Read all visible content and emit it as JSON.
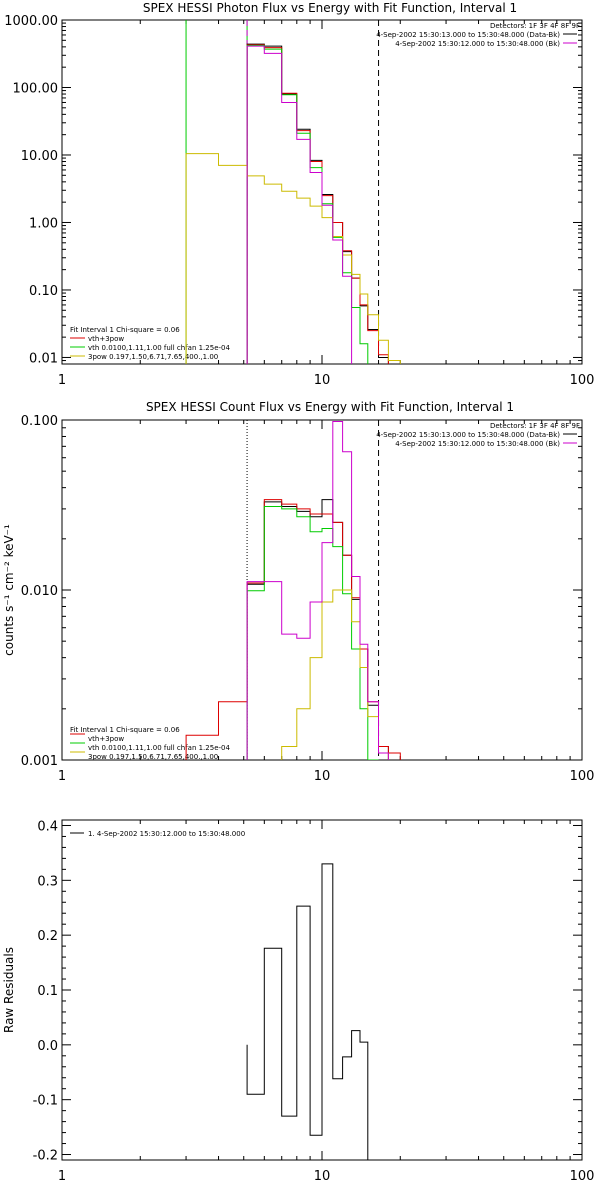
{
  "chart_data": [
    {
      "type": "line",
      "title": "SPEX HESSI Photon Flux vs Energy with Fit Function, Interval 1",
      "ylabel": "",
      "xlabel": "",
      "xscale": "log",
      "yscale": "log",
      "xlim": [
        1,
        100
      ],
      "ylim": [
        0.008,
        1000
      ],
      "xticks": [
        1,
        10,
        100
      ],
      "xtick_labels": [
        "1",
        "10",
        "100"
      ],
      "yticks": [
        0.01,
        0.1,
        1,
        10,
        100,
        1000
      ],
      "ytick_labels": [
        "0.01",
        "0.10",
        "1.00",
        "10.00",
        "100.00",
        "1000.00"
      ],
      "header_lines": [
        "Detectors: 1F 3F 4F 8F 9F"
      ],
      "legend_top": [
        {
          "text": "4-Sep-2002 15:30:13.000 to 15:30:48.000 (Data-Bk)",
          "color": "#000000"
        },
        {
          "text": "4-Sep-2002 15:30:12.000 to 15:30:48.000 (Bk)",
          "color": "#cc00cc"
        }
      ],
      "legend_bottom_header": "Fit Interval 1   Chi-square = 0.06",
      "legend_bottom": [
        {
          "text": "vth+3pow",
          "color": "#dd0000"
        },
        {
          "text": "vth 0.0100,1.11,1.00  full chfan 1.25e-04",
          "color": "#00cc00"
        },
        {
          "text": "3pow 0.197,1.50,6.71,7.65,400.,1.00",
          "color": "#ccbb00"
        }
      ],
      "vlines": [
        {
          "x": 3.0,
          "style": "solid",
          "color": "#00cc00"
        },
        {
          "x": 5.15,
          "style": "solid",
          "color": "#00cc00"
        },
        {
          "x": 5.15,
          "style": "dashed",
          "color": "#cc00cc"
        },
        {
          "x": 16.5,
          "style": "dashed",
          "color": "#000000"
        }
      ],
      "edges": [
        3.0,
        4.0,
        5.15,
        6.0,
        7.0,
        8.0,
        9.0,
        10.0,
        11.0,
        12.0,
        13.0,
        14.0,
        15.0,
        16.5,
        18.0,
        20.0
      ],
      "series": [
        {
          "name": "Data-Bk",
          "color": "#000000",
          "values": [
            null,
            null,
            440,
            410,
            80,
            24,
            8.3,
            2.6,
            1.0,
            0.37,
            0.15,
            0.058,
            0.026,
            0.01,
            null
          ]
        },
        {
          "name": "vth+3pow",
          "color": "#dd0000",
          "values": [
            null,
            null,
            430,
            390,
            82,
            23,
            8.0,
            2.5,
            1.0,
            0.38,
            0.15,
            0.06,
            0.025,
            0.011,
            null
          ]
        },
        {
          "name": "vth",
          "color": "#00cc00",
          "values": [
            null,
            null,
            420,
            370,
            78,
            21,
            6.5,
            1.9,
            0.6,
            0.18,
            0.055,
            0.016,
            null,
            null,
            null
          ]
        },
        {
          "name": "3pow",
          "color": "#ccbb00",
          "values": [
            10.5,
            7.0,
            4.9,
            3.7,
            2.9,
            2.3,
            1.75,
            1.18,
            0.62,
            0.33,
            0.17,
            0.087,
            0.043,
            0.018,
            0.009
          ]
        },
        {
          "name": "Bk",
          "color": "#cc00cc",
          "values": [
            null,
            null,
            410,
            320,
            60,
            17,
            5.5,
            1.8,
            0.55,
            0.16,
            null,
            null,
            null,
            null,
            null
          ]
        }
      ]
    },
    {
      "type": "line",
      "title": "SPEX HESSI Count Flux vs Energy with Fit Function, Interval 1",
      "ylabel": "counts s⁻¹ cm⁻² keV⁻¹",
      "xlabel": "",
      "xscale": "log",
      "yscale": "log",
      "xlim": [
        1,
        100
      ],
      "ylim": [
        0.001,
        0.1
      ],
      "xticks": [
        1,
        10,
        100
      ],
      "xtick_labels": [
        "1",
        "10",
        "100"
      ],
      "yticks": [
        0.001,
        0.01,
        0.1
      ],
      "ytick_labels": [
        "0.001",
        "0.010",
        "0.100"
      ],
      "header_lines": [
        "Detectors: 1F 3F 4F 8F 9F"
      ],
      "legend_top": [
        {
          "text": "4-Sep-2002 15:30:13.000 to 15:30:48.000 (Data-Bk)",
          "color": "#000000"
        },
        {
          "text": "4-Sep-2002 15:30:12.000 to 15:30:48.000 (Bk)",
          "color": "#cc00cc"
        }
      ],
      "legend_bottom_header": "Fit Interval 1   Chi-square = 0.06",
      "legend_bottom": [
        {
          "text": "vth+3pow",
          "color": "#dd0000"
        },
        {
          "text": "vth 0.0100,1.11,1.00  full chfan 1.25e-04",
          "color": "#00cc00"
        },
        {
          "text": "3pow 0.197,1.50,6.71,7.65,400.,1.00",
          "color": "#ccbb00"
        }
      ],
      "vlines": [
        {
          "x": 5.15,
          "style": "dotted",
          "color": "#000000"
        },
        {
          "x": 16.5,
          "style": "dashed",
          "color": "#000000"
        }
      ],
      "edges": [
        3.0,
        4.0,
        5.15,
        6.0,
        7.0,
        8.0,
        9.0,
        10.0,
        11.0,
        12.0,
        13.0,
        14.0,
        15.0,
        16.5,
        18.0,
        20.0
      ],
      "series": [
        {
          "name": "Data-Bk",
          "color": "#000000",
          "values": [
            null,
            null,
            0.0108,
            0.033,
            0.031,
            0.029,
            0.027,
            0.034,
            0.025,
            0.016,
            0.0088,
            0.0045,
            0.0021,
            0.0012,
            null
          ]
        },
        {
          "name": "vth+3pow",
          "color": "#dd0000",
          "values": [
            0.0014,
            0.0022,
            0.011,
            0.034,
            0.032,
            0.03,
            0.028,
            0.028,
            0.025,
            0.016,
            0.009,
            0.0045,
            0.0022,
            0.0012,
            0.0011
          ]
        },
        {
          "name": "vth",
          "color": "#00cc00",
          "values": [
            null,
            null,
            0.0099,
            0.031,
            0.03,
            0.027,
            0.022,
            0.023,
            0.018,
            0.0095,
            0.0045,
            0.002,
            0.001,
            null,
            null
          ]
        },
        {
          "name": "3pow",
          "color": "#ccbb00",
          "values": [
            null,
            null,
            null,
            null,
            0.0012,
            0.002,
            0.004,
            0.0085,
            0.01,
            0.01,
            0.0065,
            0.0035,
            0.0018,
            0.0011,
            null
          ]
        },
        {
          "name": "Bk",
          "color": "#cc00cc",
          "values": [
            null,
            null,
            0.0112,
            0.0112,
            0.0055,
            0.0052,
            0.0085,
            0.019,
            0.098,
            0.065,
            0.012,
            0.0048,
            0.0022,
            0.0011,
            null
          ]
        }
      ]
    },
    {
      "type": "line",
      "title": "",
      "ylabel": "Raw Residuals",
      "xlabel": "",
      "xscale": "log",
      "yscale": "linear",
      "xlim": [
        1,
        100
      ],
      "ylim": [
        -0.21,
        0.41
      ],
      "xticks": [
        1,
        10,
        100
      ],
      "xtick_labels": [
        "1",
        "10",
        "100"
      ],
      "yticks": [
        -0.2,
        -0.1,
        0.0,
        0.1,
        0.2,
        0.3,
        0.4
      ],
      "ytick_labels": [
        "-0.2",
        "-0.1",
        "0.0",
        "0.1",
        "0.2",
        "0.3",
        "0.4"
      ],
      "legend_top": [
        {
          "text": "1.  4-Sep-2002 15:30:12.000 to 15:30:48.000",
          "color": "#000000"
        }
      ],
      "edges": [
        5.15,
        6.0,
        7.0,
        8.0,
        9.0,
        10.0,
        11.0,
        12.0,
        13.0,
        14.0,
        15.0,
        16.5
      ],
      "series": [
        {
          "name": "",
          "color": "#000000",
          "values": [
            -0.09,
            0.176,
            -0.13,
            0.253,
            -0.165,
            0.33,
            -0.062,
            -0.022,
            0.026,
            0.005,
            -0.21
          ]
        }
      ]
    }
  ]
}
